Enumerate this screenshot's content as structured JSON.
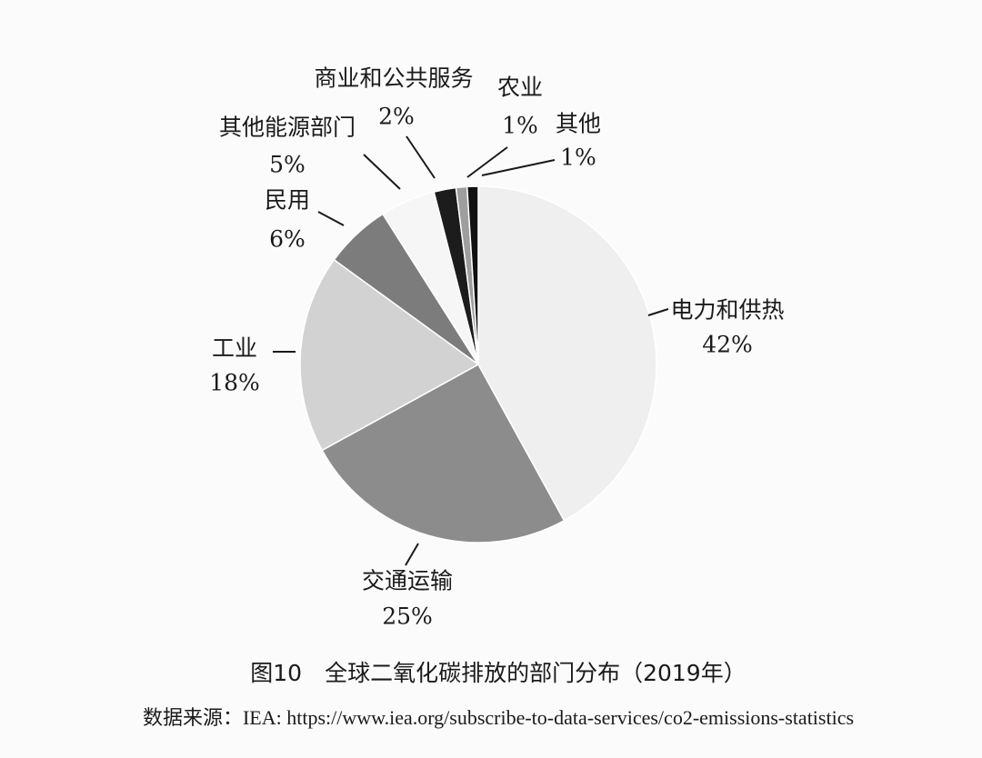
{
  "chart_data": {
    "type": "pie",
    "title": "图10　全球二氧化碳排放的部门分布（2019年）",
    "source": "数据来源：IEA: https://www.iea.org/subscribe-to-data-services/co2-emissions-statistics",
    "categories": [
      "电力和供热",
      "交通运输",
      "工业",
      "民用",
      "其他能源部门",
      "商业和公共服务",
      "农业",
      "其他"
    ],
    "values": [
      42,
      25,
      18,
      6,
      5,
      2,
      1,
      1
    ],
    "value_labels": [
      "42%",
      "25%",
      "18%",
      "6%",
      "5%",
      "2%",
      "1%",
      "1%"
    ],
    "colors": [
      "#efefef",
      "#8c8c8c",
      "#d2d2d2",
      "#7c7c7c",
      "#f6f6f6",
      "#1c1c1c",
      "#9e9e9e",
      "#111111"
    ]
  }
}
